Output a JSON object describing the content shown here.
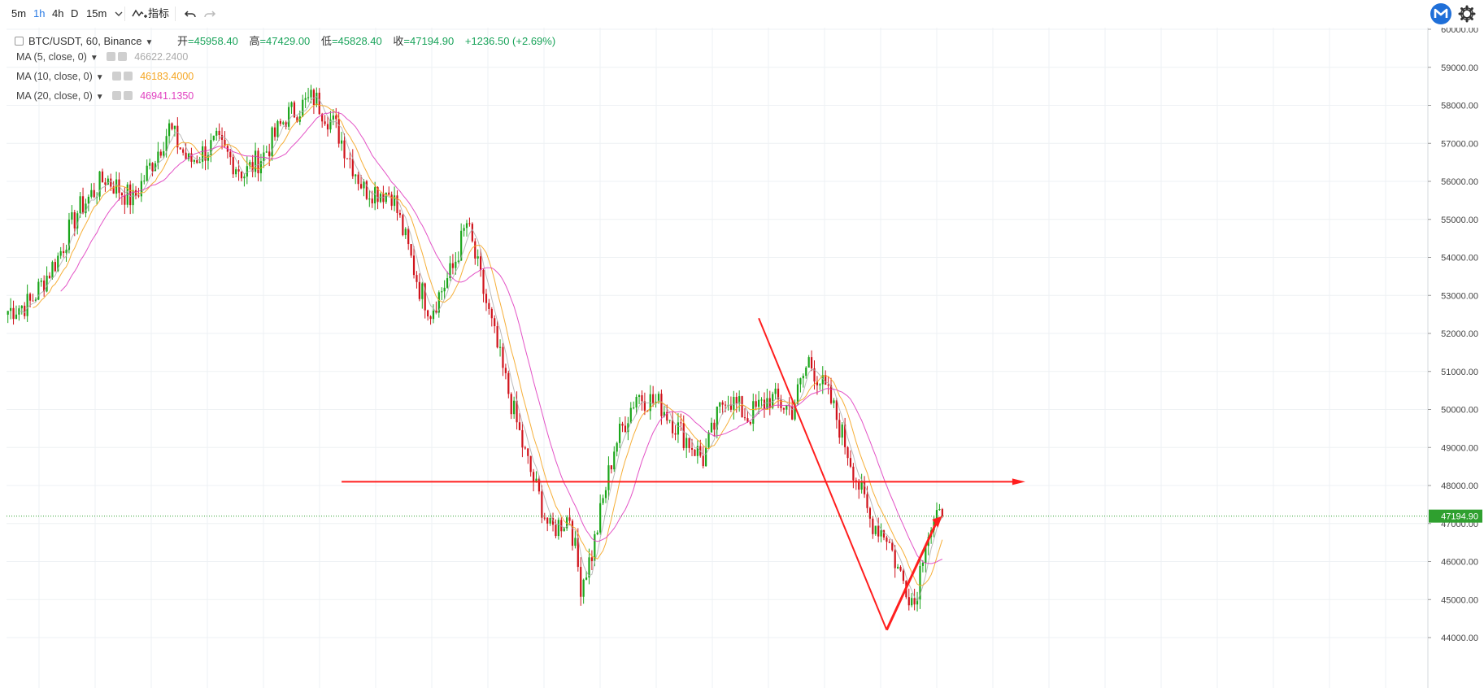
{
  "toolbar": {
    "intervals": [
      {
        "label": "5m",
        "active": false
      },
      {
        "label": "1h",
        "active": true
      },
      {
        "label": "4h",
        "active": false
      },
      {
        "label": "D",
        "active": false
      },
      {
        "label": "15m",
        "active": false
      }
    ],
    "dropdown_icon": "chevron-down-icon",
    "indicators_label": "指标",
    "indicators_icon": "indicator-wave-icon",
    "undo_icon": "undo-icon",
    "redo_icon": "redo-icon",
    "logo_icon": "m-logo-icon",
    "settings_icon": "gear-icon"
  },
  "legend": {
    "symbol": "BTC/USDT, 60, Binance",
    "open_label": "开",
    "open": "=45958.40",
    "high_label": "高",
    "high": "=47429.00",
    "low_label": "低",
    "low": "=45828.40",
    "close_label": "收",
    "close": "=47194.90",
    "change": "+1236.50 (+2.69%)",
    "ma": [
      {
        "label": "MA (5, close, 0)",
        "value": "46622.2400",
        "color": "#aaaaaa"
      },
      {
        "label": "MA (10, close, 0)",
        "value": "46183.4000",
        "color": "#f5a623"
      },
      {
        "label": "MA (20, close, 0)",
        "value": "46941.1350",
        "color": "#e040c0"
      }
    ]
  },
  "colors": {
    "up": "#1aa51a",
    "down": "#d0121b",
    "grid": "#eef1f4",
    "annotation": "#ff1e1e",
    "price_line": "#2fa02f"
  },
  "chart_data": {
    "type": "candlestick",
    "interval": "60",
    "y_axis": {
      "min": 44000,
      "max": 60000,
      "position": "right",
      "ticks": [
        "44000.00",
        "45000.00",
        "46000.00",
        "47000.00",
        "48000.00",
        "49000.00",
        "50000.00",
        "51000.00",
        "52000.00",
        "53000.00",
        "54000.00",
        "55000.00",
        "56000.00",
        "57000.00",
        "58000.00",
        "59000.00",
        "60000.00"
      ]
    },
    "grid": true,
    "last_price": {
      "value": 47194.9,
      "label": "47194.90"
    },
    "close_path": [
      [
        0,
        52600
      ],
      [
        8,
        52800
      ],
      [
        18,
        54000
      ],
      [
        25,
        55200
      ],
      [
        35,
        56100
      ],
      [
        45,
        55500
      ],
      [
        58,
        57400
      ],
      [
        65,
        56500
      ],
      [
        75,
        57000
      ],
      [
        85,
        56200
      ],
      [
        92,
        56700
      ],
      [
        100,
        57700
      ],
      [
        110,
        58200
      ],
      [
        118,
        57400
      ],
      [
        128,
        55800
      ],
      [
        138,
        55700
      ],
      [
        148,
        53200
      ],
      [
        152,
        52600
      ],
      [
        160,
        53700
      ],
      [
        165,
        54900
      ],
      [
        170,
        53400
      ],
      [
        178,
        51000
      ],
      [
        186,
        48800
      ],
      [
        195,
        46800
      ],
      [
        202,
        47200
      ],
      [
        206,
        45400
      ],
      [
        210,
        46200
      ],
      [
        218,
        49000
      ],
      [
        226,
        50400
      ],
      [
        235,
        50100
      ],
      [
        242,
        49400
      ],
      [
        250,
        48700
      ],
      [
        258,
        50400
      ],
      [
        266,
        49800
      ],
      [
        274,
        50300
      ],
      [
        282,
        50000
      ],
      [
        288,
        51300
      ],
      [
        296,
        50200
      ],
      [
        302,
        48900
      ],
      [
        310,
        47100
      ],
      [
        316,
        46700
      ],
      [
        320,
        45800
      ],
      [
        326,
        44900
      ],
      [
        330,
        46700
      ],
      [
        336,
        47200
      ]
    ],
    "ma_periods": [
      5,
      10,
      20
    ],
    "annotations": [
      {
        "type": "arrow",
        "from_bar": 120,
        "to_bar": 360,
        "price": 48100,
        "label": ""
      },
      {
        "type": "trend_line",
        "from": [
          270,
          52400
        ],
        "to": [
          316,
          44200
        ]
      },
      {
        "type": "arrow",
        "from": [
          316,
          44200
        ],
        "to": [
          335,
          47150
        ]
      }
    ]
  }
}
